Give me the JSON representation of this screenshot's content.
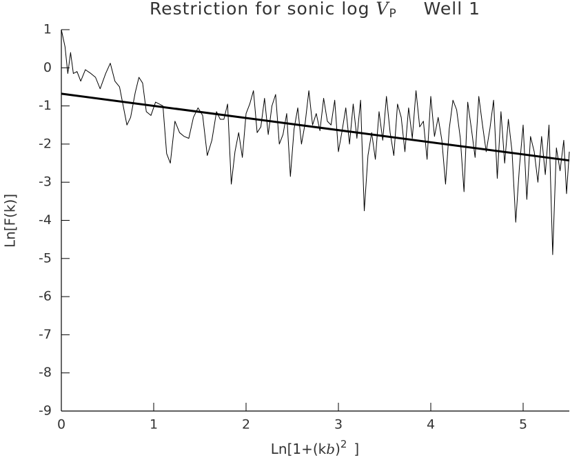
{
  "chart_data": {
    "type": "line",
    "title_parts": [
      "Restriction for sonic log",
      "V",
      "P",
      "Well 1"
    ],
    "xlabel_parts": [
      "Ln[1+(k",
      "b",
      ")",
      "2",
      "]"
    ],
    "ylabel": "Ln[F(k)]",
    "xlim": [
      0,
      5.5
    ],
    "xticks": [
      0,
      1,
      2,
      3,
      4,
      5
    ],
    "ylim": [
      -9,
      1
    ],
    "yticks": [
      1,
      0,
      -1,
      -2,
      -3,
      -4,
      -5,
      -6,
      -7,
      -8,
      -9
    ],
    "series": [
      {
        "color": "#000000",
        "width": 1,
        "x": [
          0,
          0.04,
          0.07,
          0.1,
          0.13,
          0.17,
          0.21,
          0.26,
          0.32,
          0.37,
          0.42,
          0.48,
          0.53,
          0.58,
          0.63,
          0.67,
          0.71,
          0.75,
          0.8,
          0.84,
          0.88,
          0.92,
          0.97,
          1.02,
          1.06,
          1.1,
          1.14,
          1.18,
          1.23,
          1.28,
          1.33,
          1.38,
          1.43,
          1.48,
          1.53,
          1.58,
          1.63,
          1.68,
          1.72,
          1.76,
          1.8,
          1.84,
          1.88,
          1.92,
          1.96,
          2.0,
          2.04,
          2.08,
          2.12,
          2.16,
          2.2,
          2.24,
          2.28,
          2.32,
          2.36,
          2.4,
          2.44,
          2.48,
          2.52,
          2.56,
          2.6,
          2.64,
          2.68,
          2.72,
          2.76,
          2.8,
          2.84,
          2.88,
          2.92,
          2.96,
          3.0,
          3.04,
          3.08,
          3.12,
          3.16,
          3.2,
          3.24,
          3.28,
          3.32,
          3.36,
          3.4,
          3.44,
          3.48,
          3.52,
          3.56,
          3.6,
          3.64,
          3.68,
          3.72,
          3.76,
          3.8,
          3.84,
          3.88,
          3.92,
          3.96,
          4.0,
          4.04,
          4.08,
          4.12,
          4.16,
          4.2,
          4.24,
          4.28,
          4.32,
          4.36,
          4.4,
          4.44,
          4.48,
          4.52,
          4.56,
          4.6,
          4.64,
          4.68,
          4.72,
          4.76,
          4.8,
          4.84,
          4.88,
          4.92,
          4.96,
          5.0,
          5.04,
          5.08,
          5.12,
          5.16,
          5.2,
          5.24,
          5.28,
          5.32,
          5.36,
          5.4,
          5.44,
          5.47,
          5.5
        ],
        "values": [
          1.0,
          0.55,
          -0.15,
          0.4,
          -0.15,
          -0.1,
          -0.35,
          -0.05,
          -0.15,
          -0.25,
          -0.55,
          -0.15,
          0.12,
          -0.35,
          -0.5,
          -1.0,
          -1.5,
          -1.3,
          -0.65,
          -0.25,
          -0.4,
          -1.15,
          -1.25,
          -0.9,
          -0.95,
          -1.0,
          -2.25,
          -2.5,
          -1.4,
          -1.7,
          -1.8,
          -1.85,
          -1.3,
          -1.05,
          -1.25,
          -2.3,
          -1.9,
          -1.15,
          -1.35,
          -1.35,
          -0.95,
          -3.05,
          -2.2,
          -1.7,
          -2.35,
          -1.2,
          -0.95,
          -0.6,
          -1.7,
          -1.55,
          -0.8,
          -1.75,
          -1.0,
          -0.7,
          -2.0,
          -1.75,
          -1.2,
          -2.85,
          -1.6,
          -1.05,
          -2.0,
          -1.45,
          -0.6,
          -1.5,
          -1.2,
          -1.65,
          -0.8,
          -1.4,
          -1.5,
          -0.85,
          -2.2,
          -1.65,
          -1.05,
          -2.0,
          -0.95,
          -1.85,
          -0.85,
          -3.75,
          -2.3,
          -1.7,
          -2.4,
          -1.15,
          -1.9,
          -0.75,
          -1.7,
          -2.3,
          -0.95,
          -1.3,
          -2.2,
          -1.05,
          -1.85,
          -0.6,
          -1.55,
          -1.4,
          -2.4,
          -0.75,
          -1.8,
          -1.3,
          -1.9,
          -3.05,
          -1.6,
          -0.85,
          -1.1,
          -1.85,
          -3.25,
          -0.9,
          -1.6,
          -2.35,
          -0.75,
          -1.5,
          -2.2,
          -1.6,
          -0.85,
          -2.9,
          -1.15,
          -2.5,
          -1.35,
          -2.2,
          -4.05,
          -2.6,
          -1.5,
          -3.45,
          -1.8,
          -2.2,
          -3.0,
          -1.8,
          -2.8,
          -1.5,
          -4.9,
          -2.1,
          -2.7,
          -1.9,
          -3.3,
          -2.2
        ]
      },
      {
        "color": "#000000",
        "width": 3,
        "x": [
          0,
          5.5
        ],
        "values": [
          -0.68,
          -2.43
        ]
      }
    ]
  }
}
